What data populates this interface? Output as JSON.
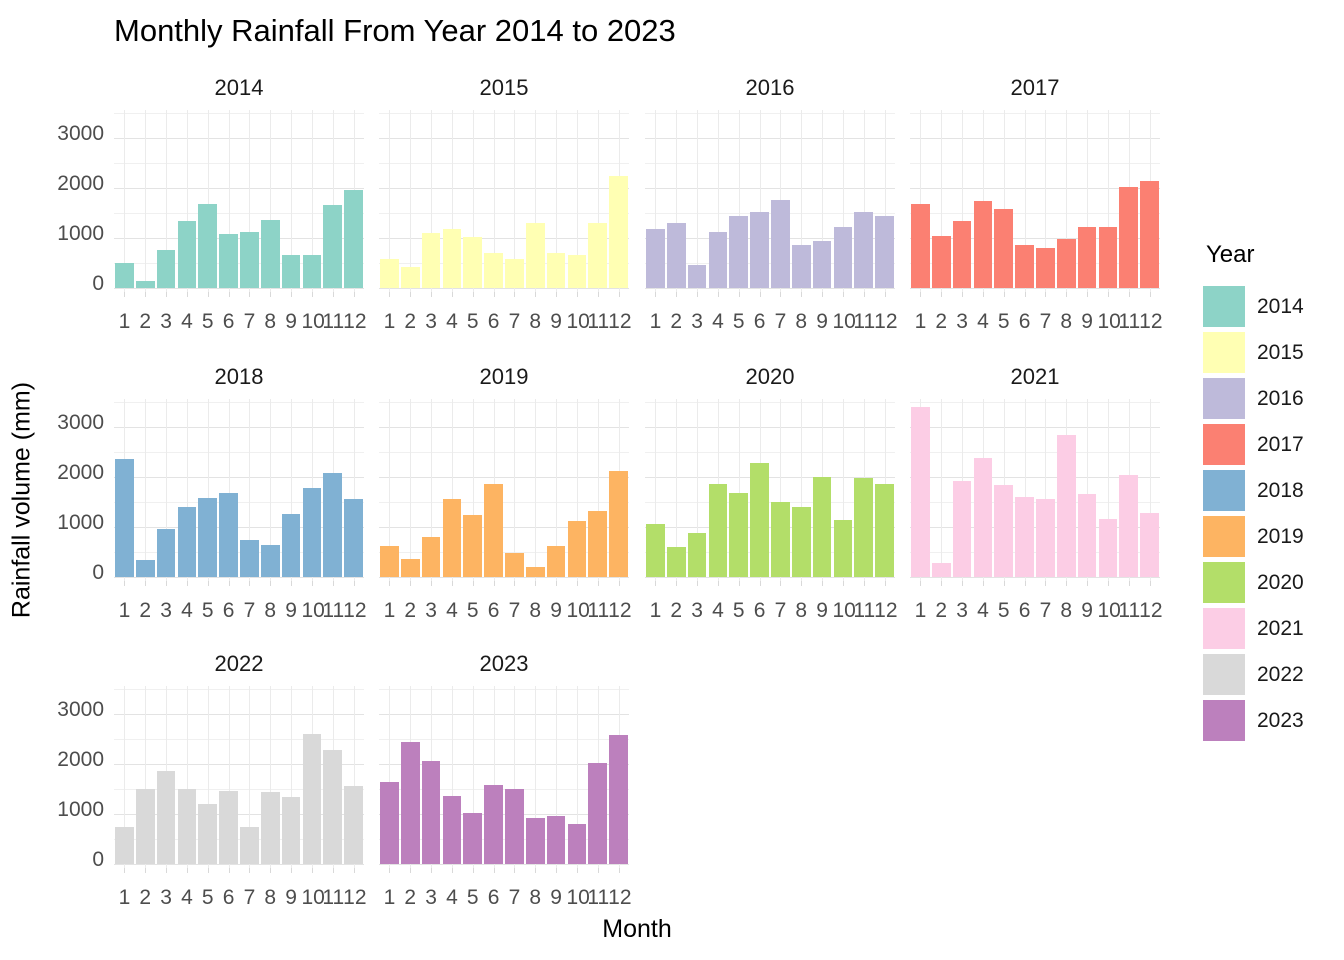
{
  "chart_data": {
    "type": "bar",
    "title": "Monthly Rainfall From Year 2014 to 2023",
    "xlabel": "Month",
    "ylabel": "Rainfall volume (mm)",
    "legend_title": "Year",
    "legend_position": "right",
    "grid": true,
    "categories": [
      "1",
      "2",
      "3",
      "4",
      "5",
      "6",
      "7",
      "8",
      "9",
      "10",
      "11",
      "12"
    ],
    "ytick_values": [
      0,
      1000,
      2000,
      3000
    ],
    "ytick_labels": [
      "0",
      "1000",
      "2000",
      "3000"
    ],
    "yminor_values": [
      500,
      1500,
      2500,
      3500
    ],
    "ylim": [
      0,
      3560
    ],
    "facets": [
      {
        "year": "2014",
        "color": "#8DD3C7",
        "values": [
          500,
          150,
          760,
          1350,
          1690,
          1080,
          1120,
          1360,
          670,
          670,
          1660,
          1970
        ]
      },
      {
        "year": "2015",
        "color": "#FFFFB3",
        "values": [
          590,
          430,
          1100,
          1190,
          1030,
          700,
          590,
          1310,
          700,
          670,
          1300,
          2240
        ]
      },
      {
        "year": "2016",
        "color": "#BEBADA",
        "values": [
          1190,
          1310,
          460,
          1120,
          1450,
          1530,
          1770,
          870,
          940,
          1230,
          1530,
          1450
        ]
      },
      {
        "year": "2017",
        "color": "#FB8072",
        "values": [
          1690,
          1050,
          1340,
          1750,
          1590,
          870,
          800,
          980,
          1230,
          1230,
          2030,
          2150
        ]
      },
      {
        "year": "2018",
        "color": "#80B1D3",
        "values": [
          2360,
          350,
          960,
          1410,
          1590,
          1690,
          740,
          640,
          1260,
          1780,
          2080,
          1560
        ]
      },
      {
        "year": "2019",
        "color": "#FDB462",
        "values": [
          630,
          370,
          810,
          1570,
          1250,
          1870,
          480,
          210,
          630,
          1130,
          1330,
          2130
        ]
      },
      {
        "year": "2020",
        "color": "#B3DE69",
        "values": [
          1060,
          600,
          890,
          1860,
          1690,
          2280,
          1510,
          1400,
          2010,
          1140,
          1980,
          1860
        ]
      },
      {
        "year": "2021",
        "color": "#FCCDE5",
        "values": [
          3400,
          290,
          1930,
          2380,
          1840,
          1610,
          1570,
          2840,
          1670,
          1160,
          2050,
          1290
        ]
      },
      {
        "year": "2022",
        "color": "#D9D9D9",
        "values": [
          740,
          1510,
          1870,
          1510,
          1210,
          1470,
          740,
          1450,
          1340,
          2600,
          2290,
          1570
        ]
      },
      {
        "year": "2023",
        "color": "#BC80BD",
        "values": [
          1650,
          2450,
          2070,
          1370,
          1030,
          1580,
          1510,
          920,
          970,
          810,
          2030,
          2590
        ]
      }
    ]
  }
}
